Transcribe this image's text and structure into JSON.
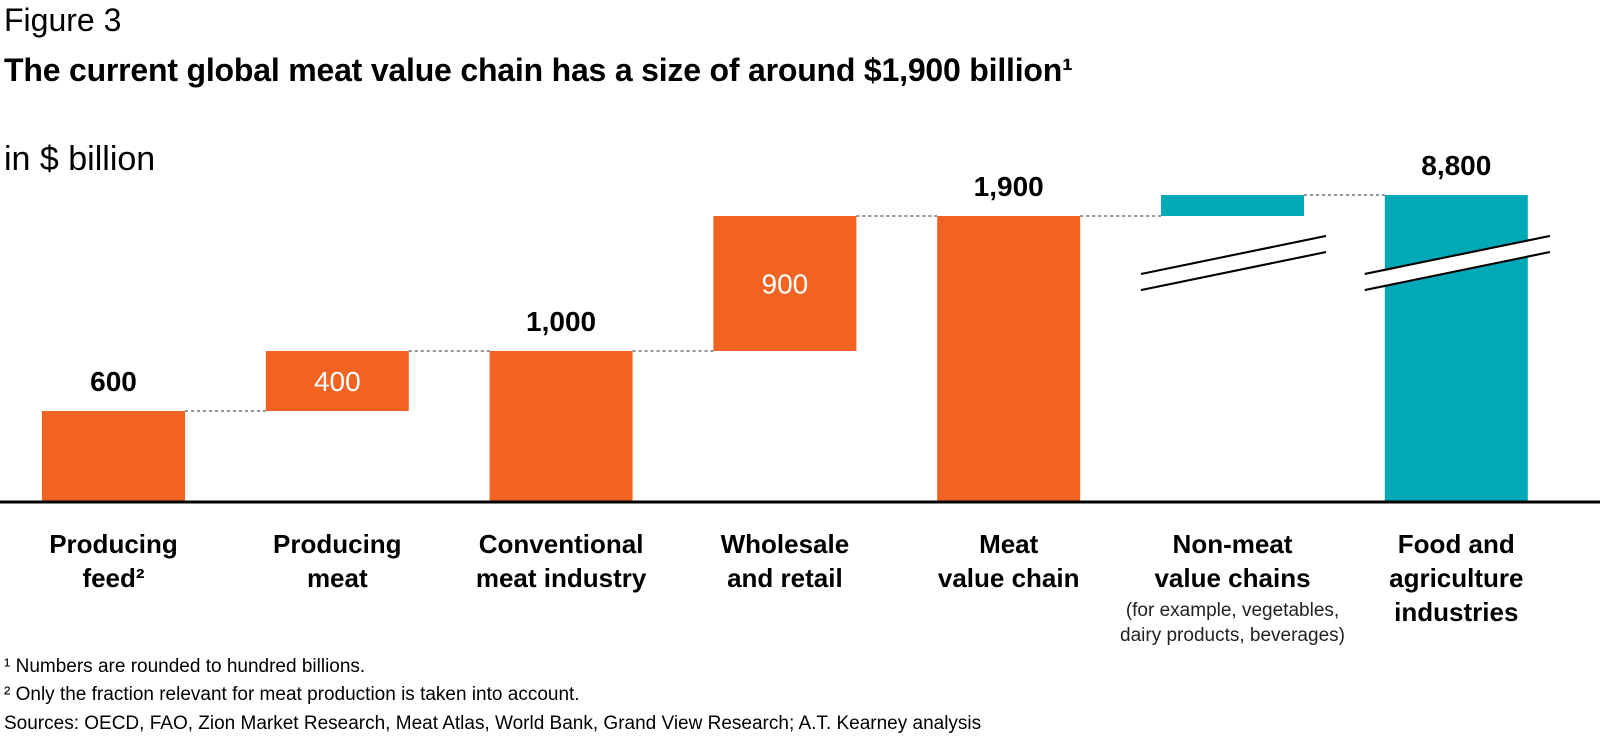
{
  "header": {
    "figure_label": "Figure 3",
    "title": "The current global meat value chain has a size of around $1,900 billion¹",
    "unit_label": "in $ billion"
  },
  "colors": {
    "orange": "#F26322",
    "teal": "#00A9B5",
    "axis": "#000000",
    "connector": "#555555"
  },
  "chart_data": {
    "type": "bar",
    "subtype": "waterfall",
    "unit": "in $ billion",
    "categories": [
      {
        "label_lines": [
          "Producing",
          "feed²"
        ],
        "value": 600,
        "base": 0,
        "color": "orange",
        "total_label": "600",
        "inside_label": ""
      },
      {
        "label_lines": [
          "Producing",
          "meat"
        ],
        "value": 400,
        "base": 600,
        "color": "orange",
        "total_label": "",
        "inside_label": "400"
      },
      {
        "label_lines": [
          "Conventional",
          "meat industry"
        ],
        "value": 1000,
        "base": 0,
        "color": "orange",
        "total_label": "1,000",
        "inside_label": ""
      },
      {
        "label_lines": [
          "Wholesale",
          "and retail"
        ],
        "value": 900,
        "base": 1000,
        "color": "orange",
        "total_label": "",
        "inside_label": "900"
      },
      {
        "label_lines": [
          "Meat",
          "value chain"
        ],
        "value": 1900,
        "base": 0,
        "color": "orange",
        "total_label": "1,900",
        "inside_label": ""
      },
      {
        "label_lines": [
          "Non-meat",
          "value chains"
        ],
        "sublabel_lines": [
          "(for example, vegetables,",
          "dairy products, beverages)"
        ],
        "value": 6900,
        "base": 1900,
        "color": "teal",
        "total_label": "",
        "inside_label": "",
        "axis_break": true
      },
      {
        "label_lines": [
          "Food and",
          "agriculture",
          "industries"
        ],
        "value": 8800,
        "base": 0,
        "color": "teal",
        "total_label": "8,800",
        "inside_label": "",
        "axis_break": true
      }
    ],
    "axis": {
      "y_shown": false,
      "grid": false,
      "broken_axis": true,
      "break_from": 2200,
      "break_to": 8800
    }
  },
  "footnotes": {
    "note1": "¹ Numbers are rounded to hundred billions.",
    "note2": "² Only the fraction relevant for meat production is taken into account.",
    "sources": "Sources: OECD, FAO, Zion Market Research, Meat Atlas, World Bank, Grand View Research; A.T. Kearney analysis"
  }
}
